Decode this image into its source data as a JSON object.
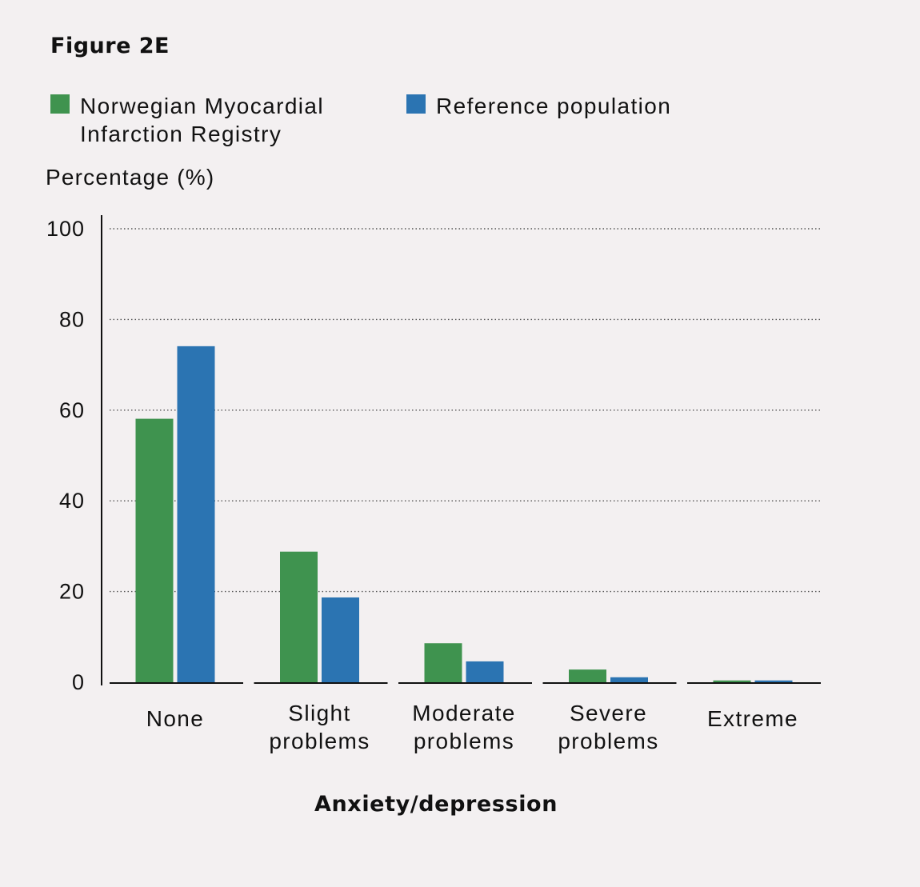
{
  "figure_title": "Figure 2E",
  "colors": {
    "background": "#f3f0f1",
    "series_registry": "#3f934f",
    "series_reference": "#2b74b2",
    "axis": "#111111",
    "grid": "#555555"
  },
  "chart_data": {
    "type": "bar",
    "title": "Figure 2E",
    "xlabel": "Anxiety/depression",
    "ylabel": "Percentage (%)",
    "ylim": [
      0,
      100
    ],
    "yticks": [
      "0",
      "20",
      "40",
      "60",
      "80",
      "100"
    ],
    "grid": "horizontal dotted",
    "legend_position": "top",
    "categories": [
      "None",
      "Slight\nproblems",
      "Moderate\nproblems",
      "Severe\nproblems",
      "Extreme"
    ],
    "series": [
      {
        "name": "Norwegian Myocardial\nInfarction Registry",
        "color": "#3f934f",
        "values": [
          58.1,
          28.8,
          8.6,
          2.8,
          0.4
        ]
      },
      {
        "name": "Reference population",
        "color": "#2b74b2",
        "values": [
          74.1,
          18.7,
          4.6,
          1.1,
          0.4
        ]
      }
    ]
  }
}
